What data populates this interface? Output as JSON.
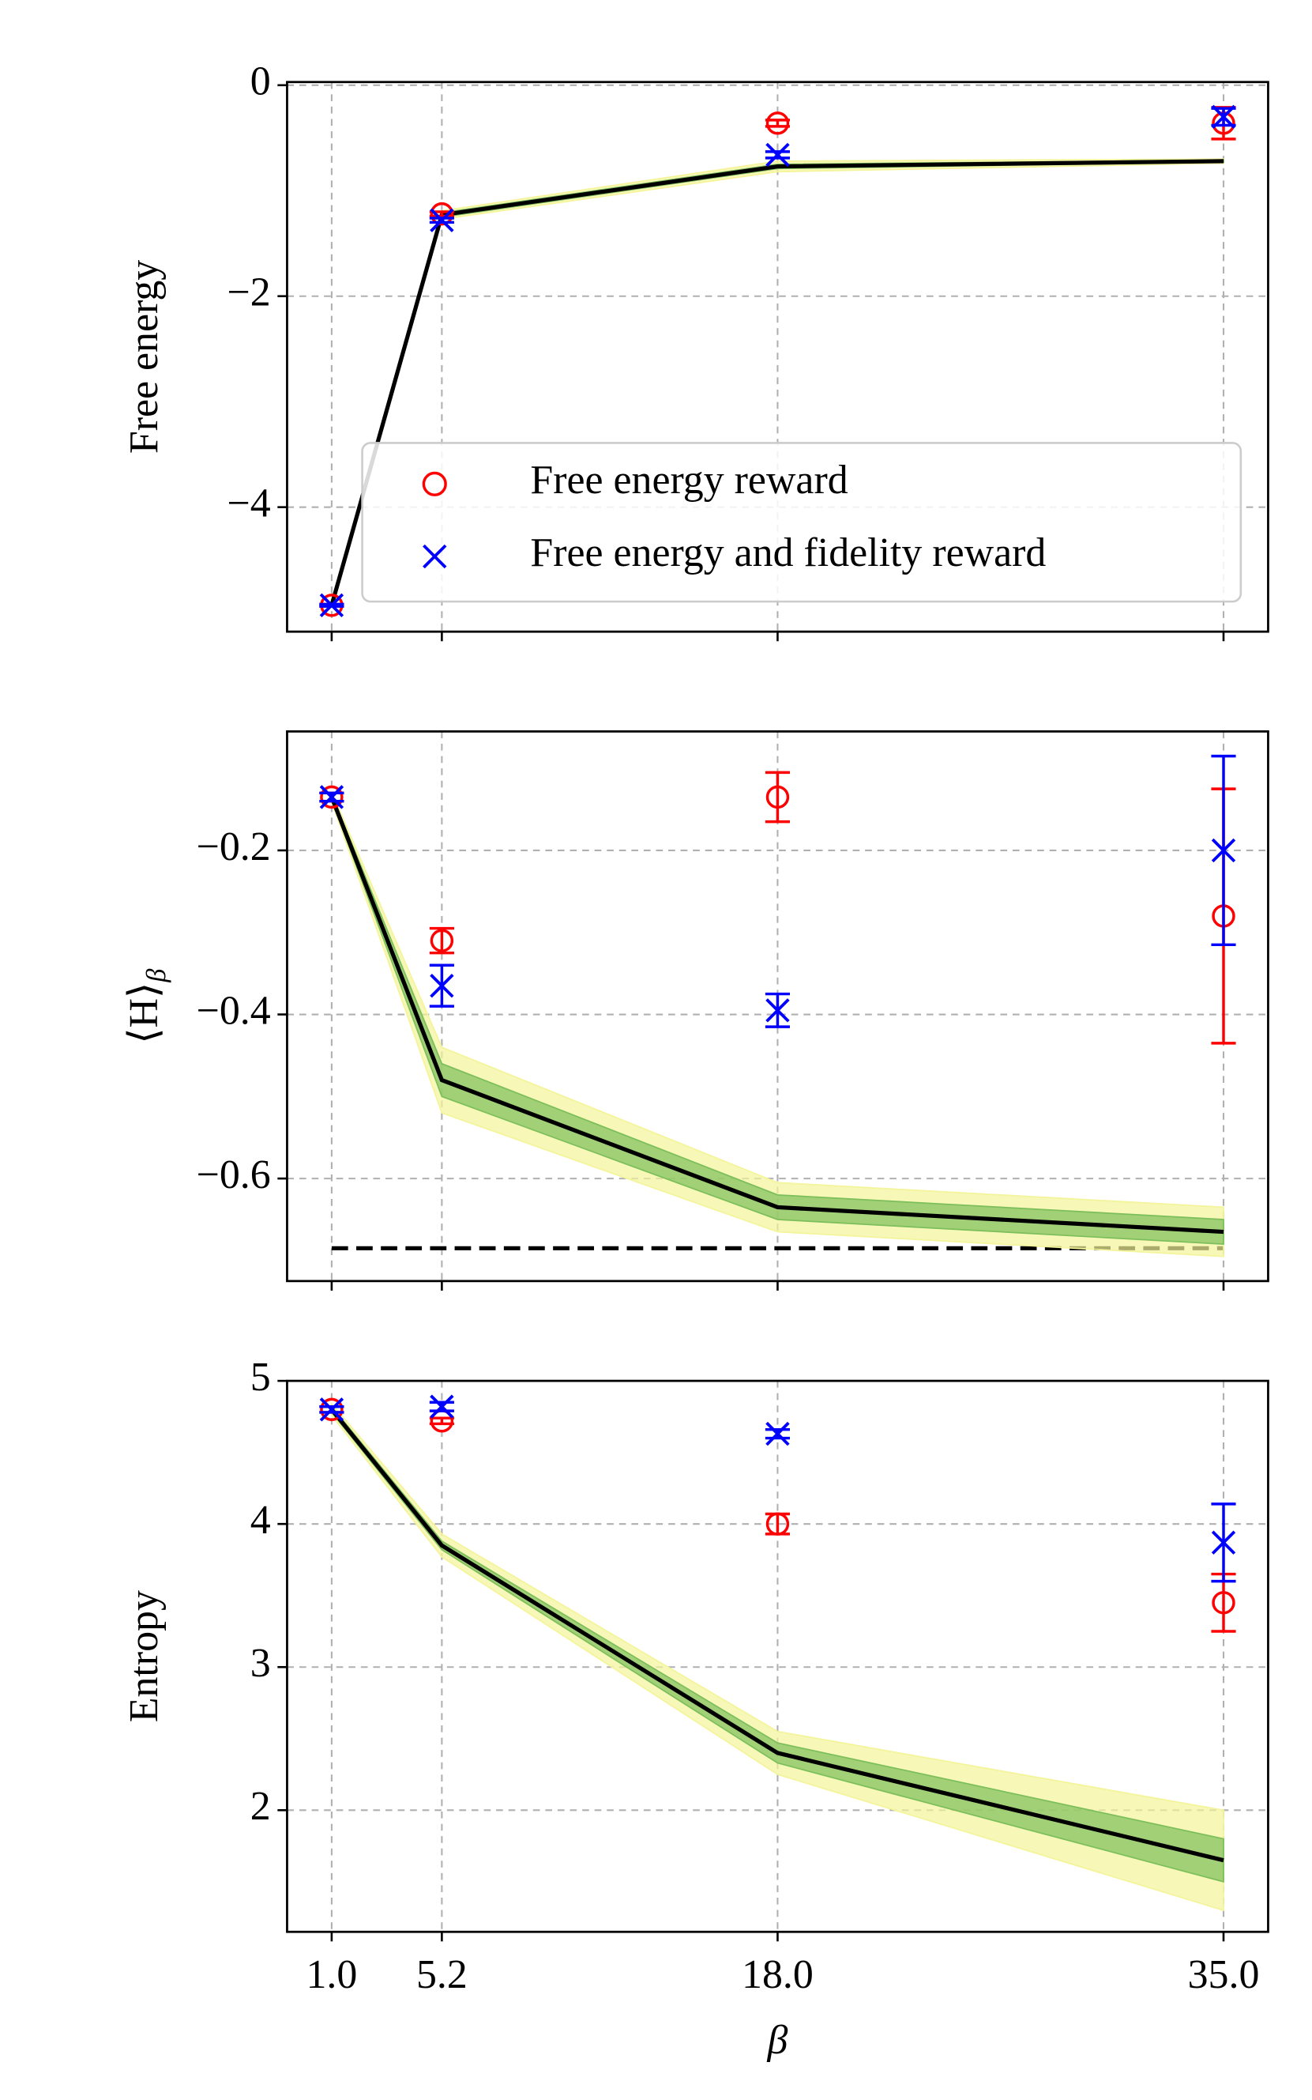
{
  "chart_data": [
    {
      "type": "line",
      "ylabel": "Free energy",
      "x": [
        1.0,
        5.2,
        18.0,
        35.0
      ],
      "xlim": [
        -0.7,
        36.7
      ],
      "xticks": [
        1.0,
        5.2,
        18.0,
        35.0
      ],
      "ylim": [
        -5.18,
        0.03
      ],
      "yticks": [
        0,
        {
          "value": -2,
          "label": "−2"
        },
        {
          "value": -4,
          "label": "−4"
        }
      ],
      "grid": true,
      "legend": "lower right",
      "series": [
        {
          "color": "#000000",
          "values": [
            -4.93,
            -1.23,
            -0.77,
            -0.72
          ],
          "band_inner": [
            0.01,
            0.02,
            0.02,
            0.01
          ],
          "band_outer": [
            0.02,
            0.04,
            0.05,
            0.02
          ],
          "band_inner_color": "#7cbf5a",
          "band_outer_color": "#f4f49a"
        },
        {
          "name": "Free energy reward",
          "color": "#ff0000",
          "marker": "o",
          "values": [
            -4.93,
            -1.22,
            -0.36,
            -0.36
          ],
          "errors": [
            0.01,
            0.02,
            0.03,
            0.15
          ]
        },
        {
          "name": "Free energy and fidelity reward",
          "color": "#0000ff",
          "marker": "x",
          "values": [
            -4.93,
            -1.28,
            -0.66,
            -0.3
          ],
          "errors": [
            0.01,
            0.02,
            0.03,
            0.08
          ]
        }
      ]
    },
    {
      "type": "line",
      "ylabel": "⟨H⟩",
      "ylabel_sub": "β",
      "x": [
        1.0,
        5.2,
        18.0,
        35.0
      ],
      "xlim": [
        -0.7,
        36.7
      ],
      "xticks": [
        1.0,
        5.2,
        18.0,
        35.0
      ],
      "ylim": [
        -0.725,
        -0.055
      ],
      "yticks": [
        {
          "value": -0.2,
          "label": "−0.2"
        },
        {
          "value": -0.4,
          "label": "−0.4"
        },
        {
          "value": -0.6,
          "label": "−0.6"
        }
      ],
      "grid": true,
      "hline": {
        "value": -0.685,
        "color": "#000000",
        "style": "dashed"
      },
      "series": [
        {
          "color": "#000000",
          "values": [
            -0.135,
            -0.48,
            -0.635,
            -0.665
          ],
          "band_inner": [
            0.003,
            0.02,
            0.015,
            0.015
          ],
          "band_outer": [
            0.006,
            0.04,
            0.03,
            0.03
          ],
          "band_inner_color": "#7cbf5a",
          "band_outer_color": "#f4f49a"
        },
        {
          "color": "#ff0000",
          "marker": "o",
          "values": [
            -0.135,
            -0.31,
            -0.135,
            -0.28
          ],
          "errors": [
            0.005,
            0.015,
            0.03,
            0.155
          ]
        },
        {
          "color": "#0000ff",
          "marker": "x",
          "values": [
            -0.135,
            -0.365,
            -0.395,
            -0.2
          ],
          "errors": [
            0.005,
            0.025,
            0.02,
            0.115
          ]
        }
      ]
    },
    {
      "type": "line",
      "ylabel": "Entropy",
      "xlabel": "β",
      "x": [
        1.0,
        5.2,
        18.0,
        35.0
      ],
      "xlim": [
        -0.7,
        36.7
      ],
      "xticks": [
        {
          "value": 1.0,
          "label": "1.0"
        },
        {
          "value": 5.2,
          "label": "5.2"
        },
        {
          "value": 18.0,
          "label": "18.0"
        },
        {
          "value": 35.0,
          "label": "35.0"
        }
      ],
      "ylim": [
        1.15,
        5.0
      ],
      "yticks": [
        2,
        3,
        4,
        5
      ],
      "grid": true,
      "series": [
        {
          "color": "#000000",
          "values": [
            4.8,
            3.85,
            2.4,
            1.65
          ],
          "band_inner": [
            0.02,
            0.03,
            0.07,
            0.15
          ],
          "band_outer": [
            0.04,
            0.08,
            0.15,
            0.35
          ],
          "band_inner_color": "#7cbf5a",
          "band_outer_color": "#f4f49a"
        },
        {
          "color": "#ff0000",
          "marker": "o",
          "values": [
            4.8,
            4.72,
            4.0,
            3.45
          ],
          "errors": [
            0.02,
            0.02,
            0.07,
            0.2
          ]
        },
        {
          "color": "#0000ff",
          "marker": "x",
          "values": [
            4.8,
            4.82,
            4.63,
            3.87
          ],
          "errors": [
            0.02,
            0.03,
            0.03,
            0.27
          ]
        }
      ]
    }
  ]
}
